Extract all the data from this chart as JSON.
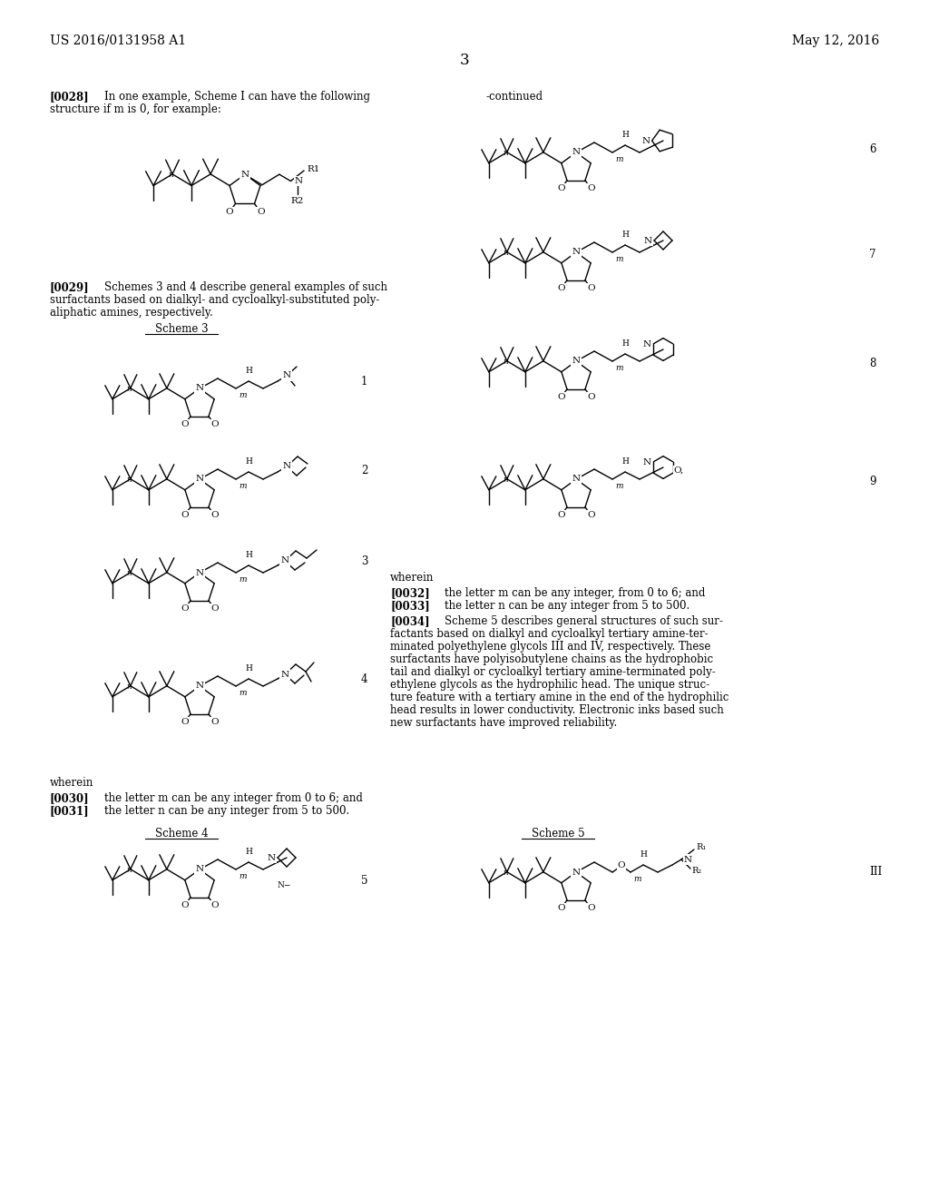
{
  "bg_color": "#ffffff",
  "text_color": "#000000",
  "header_left": "US 2016/0131958 A1",
  "header_right": "May 12, 2016",
  "page_number": "3",
  "font_size_header": 10,
  "font_size_body": 8.5,
  "font_size_small": 7.5
}
